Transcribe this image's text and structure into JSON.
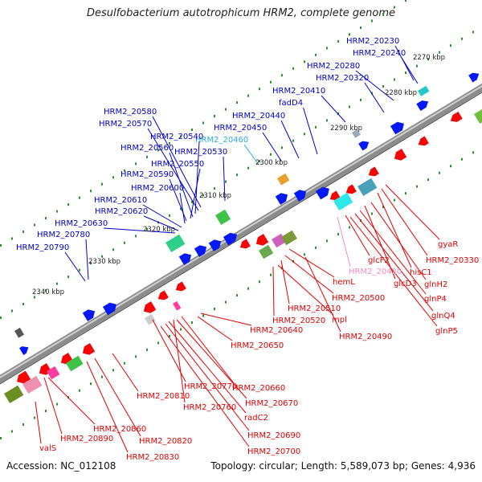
{
  "title": "Desulfobacterium autotrophicum HRM2, complete genome",
  "accession": "Accession: NC_012108",
  "summary": "Topology: circular; Length: 5,589,073 bp; Genes: 4,936",
  "colors": {
    "upper_labels": "#0000c8",
    "upper_label_highlight": "#2aaee0",
    "lower_labels": "#e00000",
    "lower_label_highlight": "#f08cc0",
    "backbone": "#8c8c8c",
    "forward_genes": "#0018ff",
    "reverse_genes": "#ff0000"
  },
  "kbp_ticks": [
    {
      "label": "2270 kbp"
    },
    {
      "label": "2280 kbp"
    },
    {
      "label": "2290 kbp"
    },
    {
      "label": "2300 kbp"
    },
    {
      "label": "2310 kbp"
    },
    {
      "label": "2320 kbp"
    },
    {
      "label": "2330 kbp"
    },
    {
      "label": "2340 kbp"
    }
  ],
  "upper_genes": [
    {
      "label": "HRM2_20230"
    },
    {
      "label": "HRM2_20240"
    },
    {
      "label": "HRM2_20280"
    },
    {
      "label": "HRM2_20320"
    },
    {
      "label": "HRM2_20410"
    },
    {
      "label": "fadD4"
    },
    {
      "label": "HRM2_20440"
    },
    {
      "label": "HRM2_20450"
    },
    {
      "label": "HRM2_20460",
      "highlight": true
    },
    {
      "label": "HRM2_20580"
    },
    {
      "label": "HRM2_20570"
    },
    {
      "label": "HRM2_20540"
    },
    {
      "label": "HRM2_20560"
    },
    {
      "label": "HRM2_20530"
    },
    {
      "label": "HRM2_20550"
    },
    {
      "label": "HRM2_20590"
    },
    {
      "label": "HRM2_20600"
    },
    {
      "label": "HRM2_20610"
    },
    {
      "label": "HRM2_20620"
    },
    {
      "label": "HRM2_20630"
    },
    {
      "label": "HRM2_20780"
    },
    {
      "label": "HRM2_20790"
    }
  ],
  "lower_genes": [
    {
      "label": "gyaR"
    },
    {
      "label": "HRM2_20330"
    },
    {
      "label": "hisC1"
    },
    {
      "label": "glcF2"
    },
    {
      "label": "glnH2"
    },
    {
      "label": "HRM2_20420",
      "highlight": true
    },
    {
      "label": "glcD3"
    },
    {
      "label": "hemL"
    },
    {
      "label": "glnP4"
    },
    {
      "label": "HRM2_20500"
    },
    {
      "label": "glnQ4"
    },
    {
      "label": "HRM2_20510"
    },
    {
      "label": "mpl"
    },
    {
      "label": "HRM2_20520"
    },
    {
      "label": "glnP5"
    },
    {
      "label": "HRM2_20640"
    },
    {
      "label": "HRM2_20490"
    },
    {
      "label": "HRM2_20650"
    },
    {
      "label": "HRM2_20660"
    },
    {
      "label": "HRM2_20770"
    },
    {
      "label": "HRM2_20670"
    },
    {
      "label": "HRM2_20810"
    },
    {
      "label": "HRM2_20760"
    },
    {
      "label": "radC2"
    },
    {
      "label": "HRM2_20860"
    },
    {
      "label": "HRM2_20690"
    },
    {
      "label": "HRM2_20890"
    },
    {
      "label": "HRM2_20820"
    },
    {
      "label": "valS"
    },
    {
      "label": "HRM2_20700"
    },
    {
      "label": "HRM2_20830"
    }
  ]
}
